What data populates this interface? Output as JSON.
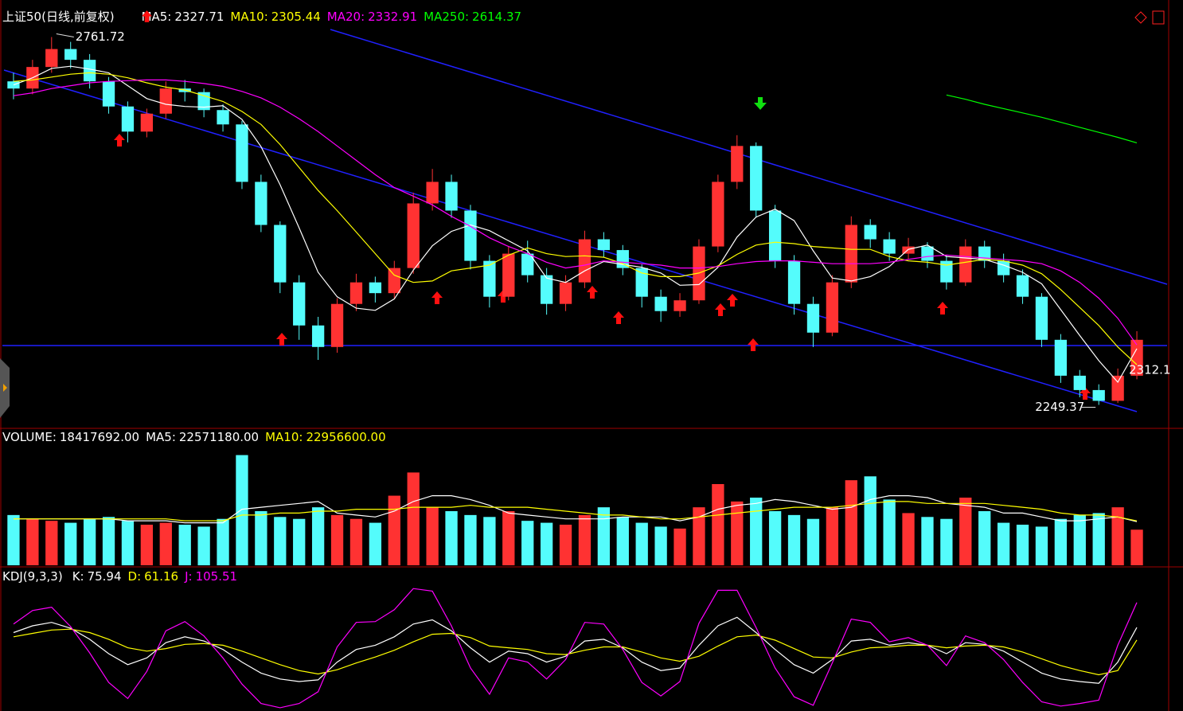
{
  "chart_data": [
    {
      "type": "candlestick",
      "title": "上证50(日线,前复权)",
      "open": [
        2700,
        2690,
        2720,
        2745,
        2730,
        2700,
        2665,
        2630,
        2655,
        2690,
        2685,
        2660,
        2640,
        2560,
        2500,
        2420,
        2360,
        2330,
        2390,
        2420,
        2405,
        2440,
        2530,
        2560,
        2520,
        2450,
        2400,
        2460,
        2430,
        2390,
        2420,
        2480,
        2465,
        2440,
        2400,
        2380,
        2395,
        2470,
        2560,
        2610,
        2520,
        2450,
        2390,
        2350,
        2420,
        2500,
        2480,
        2460,
        2470,
        2450,
        2420,
        2470,
        2450,
        2430,
        2400,
        2340,
        2290,
        2270,
        2255,
        2290
      ],
      "high": [
        2712,
        2730,
        2761.72,
        2755,
        2738,
        2706,
        2672,
        2662,
        2700,
        2702,
        2690,
        2668,
        2645,
        2570,
        2505,
        2430,
        2372,
        2398,
        2432,
        2428,
        2450,
        2545,
        2578,
        2570,
        2528,
        2458,
        2470,
        2478,
        2440,
        2430,
        2492,
        2490,
        2472,
        2445,
        2410,
        2405,
        2480,
        2570,
        2625,
        2615,
        2528,
        2458,
        2400,
        2430,
        2512,
        2508,
        2490,
        2482,
        2476,
        2458,
        2480,
        2478,
        2460,
        2438,
        2405,
        2348,
        2298,
        2278,
        2300,
        2352
      ],
      "low": [
        2675,
        2682,
        2712,
        2718,
        2690,
        2655,
        2615,
        2622,
        2648,
        2672,
        2650,
        2630,
        2550,
        2490,
        2405,
        2340,
        2312,
        2322,
        2380,
        2392,
        2398,
        2432,
        2520,
        2510,
        2438,
        2385,
        2395,
        2420,
        2375,
        2380,
        2412,
        2455,
        2430,
        2385,
        2365,
        2372,
        2390,
        2462,
        2550,
        2510,
        2440,
        2375,
        2330,
        2345,
        2412,
        2468,
        2450,
        2452,
        2440,
        2410,
        2415,
        2440,
        2420,
        2390,
        2330,
        2280,
        2260,
        2249.37,
        2252,
        2285
      ],
      "close": [
        2690,
        2720,
        2745,
        2730,
        2700,
        2665,
        2630,
        2655,
        2690,
        2685,
        2660,
        2640,
        2560,
        2500,
        2420,
        2360,
        2330,
        2390,
        2420,
        2405,
        2440,
        2530,
        2560,
        2520,
        2450,
        2400,
        2460,
        2430,
        2390,
        2420,
        2480,
        2465,
        2440,
        2400,
        2380,
        2395,
        2470,
        2560,
        2610,
        2520,
        2450,
        2390,
        2350,
        2420,
        2500,
        2480,
        2460,
        2470,
        2450,
        2420,
        2470,
        2450,
        2430,
        2400,
        2340,
        2290,
        2270,
        2255,
        2290,
        2340
      ],
      "up_color": "#ff3232",
      "down_color": "#54fcfc",
      "ylim": [
        2220,
        2800
      ],
      "series": [
        {
          "name": "MA5:",
          "color": "#ffffff",
          "values": [
            2695,
            2705,
            2718,
            2721,
            2717,
            2712,
            2694,
            2676,
            2668,
            2665,
            2664,
            2666,
            2647,
            2609,
            2556,
            2496,
            2434,
            2400,
            2384,
            2381,
            2397,
            2437,
            2471,
            2491,
            2500,
            2492,
            2478,
            2464,
            2426,
            2420,
            2436,
            2449,
            2445,
            2441,
            2433,
            2416,
            2417,
            2441,
            2483,
            2511,
            2522,
            2506,
            2464,
            2426,
            2422,
            2428,
            2442,
            2466,
            2472,
            2456,
            2454,
            2452,
            2444,
            2434,
            2418,
            2382,
            2346,
            2311,
            2281,
            2327.71
          ]
        },
        {
          "name": "MA10:",
          "color": "#ffff00",
          "values": [
            2700,
            2702,
            2706,
            2710,
            2712,
            2710,
            2705,
            2698,
            2692,
            2688,
            2680,
            2672,
            2658,
            2640,
            2612,
            2580,
            2548,
            2520,
            2490,
            2460,
            2430,
            2420,
            2422,
            2436,
            2440,
            2444,
            2458,
            2468,
            2460,
            2456,
            2457,
            2455,
            2446,
            2433,
            2428,
            2428,
            2433,
            2443,
            2459,
            2472,
            2476,
            2474,
            2470,
            2468,
            2466,
            2466,
            2456,
            2450,
            2448,
            2444,
            2448,
            2452,
            2450,
            2444,
            2432,
            2410,
            2385,
            2360,
            2330,
            2305.44
          ]
        },
        {
          "name": "MA20:",
          "color": "#ff00ff",
          "values": [
            2680,
            2684,
            2690,
            2694,
            2698,
            2700,
            2701,
            2702,
            2702,
            2700,
            2697,
            2693,
            2686,
            2677,
            2664,
            2648,
            2630,
            2610,
            2590,
            2570,
            2552,
            2540,
            2528,
            2512,
            2498,
            2482,
            2470,
            2460,
            2448,
            2440,
            2444,
            2450,
            2448,
            2446,
            2444,
            2440,
            2440,
            2442,
            2446,
            2449,
            2450,
            2450,
            2448,
            2446,
            2446,
            2446,
            2448,
            2452,
            2456,
            2458,
            2456,
            2454,
            2452,
            2450,
            2446,
            2436,
            2420,
            2398,
            2370,
            2332.91
          ]
        },
        {
          "name": "MA250:",
          "color": "#00ff00",
          "values": [
            null,
            null,
            null,
            null,
            null,
            null,
            null,
            null,
            null,
            null,
            null,
            null,
            null,
            null,
            null,
            null,
            null,
            null,
            null,
            null,
            null,
            null,
            null,
            null,
            null,
            null,
            null,
            null,
            null,
            null,
            null,
            null,
            null,
            null,
            null,
            null,
            null,
            null,
            null,
            null,
            null,
            null,
            null,
            null,
            null,
            null,
            null,
            null,
            null,
            2681,
            2675,
            2668,
            2662,
            2656,
            2650,
            2643,
            2636,
            2629,
            2622,
            2614.37
          ]
        }
      ],
      "annotations": [
        "2312.1"
      ]
    },
    {
      "type": "bar",
      "name": "VOLUME:",
      "values": [
        26000000,
        24000000,
        23000000,
        22000000,
        24000000,
        25000000,
        23000000,
        21000000,
        22000000,
        21000000,
        20000000,
        24000000,
        57000000,
        28000000,
        25000000,
        24000000,
        30000000,
        26000000,
        24000000,
        22000000,
        36000000,
        48000000,
        30000000,
        28000000,
        26000000,
        25000000,
        28000000,
        23000000,
        22000000,
        21000000,
        26000000,
        30000000,
        25000000,
        22000000,
        20000000,
        19000000,
        30000000,
        42000000,
        33000000,
        35000000,
        28000000,
        26000000,
        24000000,
        30000000,
        44000000,
        46000000,
        34000000,
        27000000,
        25000000,
        24000000,
        35000000,
        28000000,
        22000000,
        21000000,
        20000000,
        24000000,
        26000000,
        27000000,
        30000000,
        18417692
      ],
      "value_labels": {
        "59": "18417692.00"
      },
      "ylim": [
        0,
        63000000
      ],
      "series": [
        {
          "name": "MA5:",
          "color": "#ffffff",
          "values": [
            24000000,
            24000000,
            24000000,
            24000000,
            24000000,
            24000000,
            23000000,
            23000000,
            23000000,
            22000000,
            22000000,
            22000000,
            29000000,
            30000000,
            31000000,
            32000000,
            33000000,
            27000000,
            26000000,
            25000000,
            28000000,
            33000000,
            36000000,
            36000000,
            34000000,
            31000000,
            27000000,
            26000000,
            25000000,
            24000000,
            24000000,
            24000000,
            25000000,
            25000000,
            25000000,
            23000000,
            25000000,
            29000000,
            31000000,
            32000000,
            34000000,
            33000000,
            31000000,
            29000000,
            30000000,
            34000000,
            36000000,
            36000000,
            35000000,
            32000000,
            31000000,
            30000000,
            27000000,
            27000000,
            25000000,
            23000000,
            23000000,
            24000000,
            25000000,
            22571180
          ],
          "value_labels": {
            "59": "22571180.00"
          }
        },
        {
          "name": "MA10:",
          "color": "#ffff00",
          "values": [
            24000000,
            24000000,
            24000000,
            24000000,
            24000000,
            24000000,
            24000000,
            24000000,
            24000000,
            23000000,
            23000000,
            23000000,
            26000000,
            26000000,
            27000000,
            27000000,
            28000000,
            28000000,
            29000000,
            29000000,
            29000000,
            30000000,
            30000000,
            30000000,
            31000000,
            30000000,
            30000000,
            30000000,
            29000000,
            28000000,
            27000000,
            26000000,
            26000000,
            25000000,
            24000000,
            24000000,
            25000000,
            26000000,
            27000000,
            28000000,
            29000000,
            30000000,
            30000000,
            30000000,
            31000000,
            32000000,
            33000000,
            33000000,
            32000000,
            32000000,
            32000000,
            32000000,
            31000000,
            30000000,
            29000000,
            27000000,
            26000000,
            26000000,
            25000000,
            22956600
          ],
          "value_labels": {
            "59": "22956600.00"
          }
        }
      ]
    },
    {
      "type": "line",
      "title": "KDJ(9,3,3)",
      "ylim": [
        -20,
        126
      ],
      "series": [
        {
          "name": "K:",
          "color": "#ffffff",
          "values": [
            70,
            78,
            82,
            75,
            62,
            45,
            32,
            40,
            58,
            65,
            60,
            50,
            35,
            22,
            15,
            12,
            14,
            35,
            50,
            55,
            65,
            80,
            85,
            72,
            52,
            35,
            48,
            45,
            35,
            42,
            60,
            62,
            52,
            35,
            25,
            28,
            55,
            78,
            88,
            70,
            50,
            32,
            22,
            38,
            60,
            62,
            55,
            58,
            55,
            45,
            58,
            56,
            48,
            35,
            22,
            15,
            12,
            10,
            35,
            75.94
          ]
        },
        {
          "name": "D:",
          "color": "#ffff00",
          "values": [
            65,
            69,
            73,
            74,
            70,
            62,
            52,
            48,
            51,
            56,
            57,
            55,
            48,
            40,
            32,
            25,
            21,
            26,
            34,
            41,
            49,
            59,
            68,
            69,
            64,
            54,
            52,
            50,
            45,
            44,
            49,
            53,
            53,
            47,
            40,
            36,
            42,
            54,
            65,
            67,
            61,
            51,
            41,
            40,
            47,
            52,
            53,
            55,
            55,
            52,
            54,
            55,
            53,
            47,
            39,
            31,
            25,
            20,
            25,
            61.16
          ]
        },
        {
          "name": "J:",
          "color": "#ff00ff",
          "values": [
            80,
            96,
            100,
            77,
            46,
            11,
            -8,
            24,
            72,
            83,
            66,
            40,
            9,
            -14,
            -19,
            -14,
            0,
            53,
            82,
            83,
            97,
            122,
            119,
            78,
            28,
            -3,
            40,
            35,
            15,
            38,
            82,
            80,
            50,
            11,
            -5,
            12,
            81,
            120,
            120,
            76,
            28,
            -6,
            -16,
            34,
            86,
            82,
            59,
            64,
            55,
            31,
            66,
            58,
            38,
            11,
            -12,
            -17,
            -14,
            -10,
            55,
            105.51
          ]
        }
      ]
    }
  ]
}
